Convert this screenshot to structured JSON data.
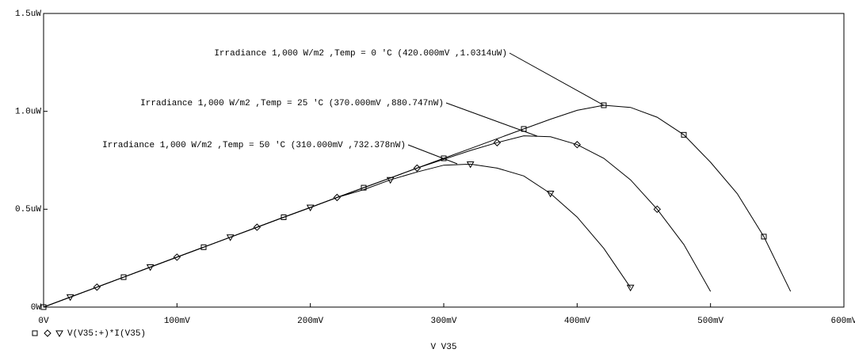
{
  "chart_data": {
    "type": "line",
    "x_label": "V V35",
    "legend": "V(V35:+)*I(V35)",
    "x": [
      0,
      20,
      40,
      60,
      80,
      100,
      120,
      140,
      160,
      180,
      200,
      220,
      240,
      260,
      280,
      300,
      320,
      340,
      360,
      380,
      400,
      420,
      440,
      460,
      480,
      500,
      520,
      540,
      560,
      580
    ],
    "series": [
      {
        "name": "T0",
        "color": "#000000",
        "marker": "square",
        "values": [
          0,
          0.051,
          0.102,
          0.153,
          0.204,
          0.255,
          0.306,
          0.357,
          0.408,
          0.459,
          0.509,
          0.56,
          0.61,
          0.66,
          0.71,
          0.76,
          0.81,
          0.86,
          0.91,
          0.96,
          1.005,
          1.031,
          1.02,
          0.97,
          0.88,
          0.74,
          0.58,
          0.36,
          0.08,
          null
        ]
      },
      {
        "name": "T25",
        "color": "#000000",
        "marker": "diamond",
        "values": [
          0,
          0.051,
          0.102,
          0.153,
          0.204,
          0.255,
          0.306,
          0.357,
          0.408,
          0.459,
          0.509,
          0.56,
          0.61,
          0.66,
          0.71,
          0.755,
          0.8,
          0.84,
          0.875,
          0.87,
          0.83,
          0.76,
          0.65,
          0.5,
          0.32,
          0.08,
          null,
          null,
          null,
          null
        ]
      },
      {
        "name": "T50",
        "color": "#000000",
        "marker": "triangle",
        "values": [
          0,
          0.051,
          0.102,
          0.153,
          0.204,
          0.255,
          0.306,
          0.357,
          0.408,
          0.459,
          0.509,
          0.56,
          0.6,
          0.65,
          0.69,
          0.725,
          0.73,
          0.71,
          0.67,
          0.58,
          0.46,
          0.3,
          0.1,
          null,
          null,
          null,
          null,
          null,
          null,
          null
        ]
      }
    ],
    "annotations": [
      "Irradiance 1,000 W/m2 ,Temp = 0 'C (420.000mV ,1.0314uW)",
      "Irradiance 1,000 W/m2 ,Temp = 25 'C (370.000mV ,880.747nW)",
      "Irradiance 1,000 W/m2 ,Temp = 50 'C (310.000mV ,732.378nW)"
    ],
    "xlim": [
      0,
      600
    ],
    "xticks": [
      {
        "value": 0,
        "label": "0V"
      },
      {
        "value": 100,
        "label": "100mV"
      },
      {
        "value": 200,
        "label": "200mV"
      },
      {
        "value": 300,
        "label": "300mV"
      },
      {
        "value": 400,
        "label": "400mV"
      },
      {
        "value": 500,
        "label": "500mV"
      },
      {
        "value": 600,
        "label": "600mV"
      }
    ],
    "ylim": [
      0,
      1.5
    ],
    "yticks": [
      {
        "value": 0,
        "label": "0W"
      },
      {
        "value": 0.5,
        "label": "0.5uW"
      },
      {
        "value": 1,
        "label": "1.0uW"
      },
      {
        "value": 1.5,
        "label": "1.5uW"
      }
    ]
  }
}
